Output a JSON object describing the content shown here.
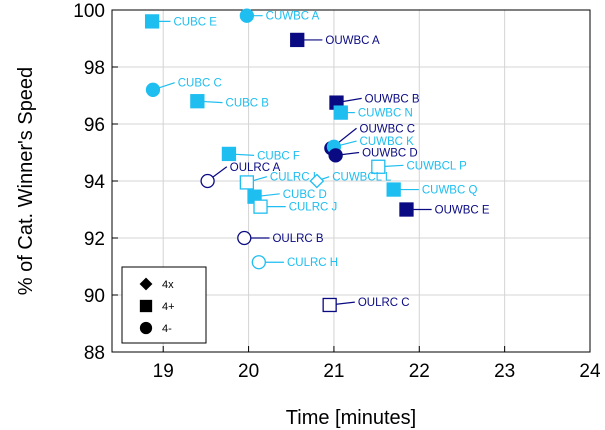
{
  "colors": {
    "light": "#1EBEF0",
    "dark": "#0A0A82",
    "grid": "#d4d4d4",
    "axis": "#000000"
  },
  "chart_data": {
    "type": "scatter",
    "xlabel": "Time [minutes]",
    "ylabel": "% of Cat. Winner's Speed",
    "xlim": [
      18.4,
      24
    ],
    "ylim": [
      88,
      100
    ],
    "xticks": [
      19,
      20,
      21,
      22,
      23,
      24
    ],
    "yticks": [
      88,
      90,
      92,
      94,
      96,
      98,
      100
    ],
    "grid": true,
    "legend": {
      "placement": "bottom-left",
      "entries": [
        {
          "marker": "diamond",
          "label": "4x"
        },
        {
          "marker": "square",
          "label": "4+"
        },
        {
          "marker": "circle",
          "label": "4-"
        }
      ]
    },
    "points": [
      {
        "label": "CUWBC A",
        "x": 19.98,
        "y": 99.8,
        "marker": "circle",
        "filled": true,
        "color": "light",
        "lx": 20.2,
        "ly": 99.8
      },
      {
        "label": "CUBC E",
        "x": 18.87,
        "y": 99.6,
        "marker": "square",
        "filled": true,
        "color": "light",
        "lx": 19.12,
        "ly": 99.6
      },
      {
        "label": "OUWBC A",
        "x": 20.57,
        "y": 98.95,
        "marker": "square",
        "filled": true,
        "color": "dark",
        "lx": 20.9,
        "ly": 98.95
      },
      {
        "label": "CUBC C",
        "x": 18.88,
        "y": 97.2,
        "marker": "circle",
        "filled": true,
        "color": "light",
        "lx": 19.17,
        "ly": 97.45
      },
      {
        "label": "CUBC B",
        "x": 19.4,
        "y": 96.8,
        "marker": "square",
        "filled": true,
        "color": "light",
        "lx": 19.73,
        "ly": 96.75
      },
      {
        "label": "OUWBC B",
        "x": 21.03,
        "y": 96.75,
        "marker": "square",
        "filled": true,
        "color": "dark",
        "lx": 21.36,
        "ly": 96.9
      },
      {
        "label": "CUWBC N",
        "x": 21.08,
        "y": 96.4,
        "marker": "square",
        "filled": true,
        "color": "light",
        "lx": 21.28,
        "ly": 96.4
      },
      {
        "label": "OUWBC C",
        "x": 20.97,
        "y": 95.15,
        "marker": "circle",
        "filled": true,
        "color": "dark",
        "lx": 21.3,
        "ly": 95.85
      },
      {
        "label": "CUWBC K",
        "x": 21.0,
        "y": 95.2,
        "marker": "circle",
        "filled": true,
        "color": "light",
        "lx": 21.3,
        "ly": 95.4
      },
      {
        "label": "OUWBC D",
        "x": 21.02,
        "y": 94.9,
        "marker": "circle",
        "filled": true,
        "color": "dark",
        "lx": 21.33,
        "ly": 95.0
      },
      {
        "label": "CUBC F",
        "x": 19.77,
        "y": 94.95,
        "marker": "square",
        "filled": true,
        "color": "light",
        "lx": 20.1,
        "ly": 94.9
      },
      {
        "label": "CUWBCL P",
        "x": 21.52,
        "y": 94.5,
        "marker": "square",
        "filled": false,
        "color": "light",
        "lx": 21.85,
        "ly": 94.55
      },
      {
        "label": "OULRC A",
        "x": 19.52,
        "y": 94.0,
        "marker": "circle",
        "filled": false,
        "color": "dark",
        "lx": 19.78,
        "ly": 94.5
      },
      {
        "label": "CULRC I",
        "x": 19.98,
        "y": 93.95,
        "marker": "square",
        "filled": false,
        "color": "light",
        "lx": 20.25,
        "ly": 94.15
      },
      {
        "label": "CUWBCL L",
        "x": 20.8,
        "y": 94.0,
        "marker": "diamond",
        "filled": false,
        "color": "light",
        "lx": 20.98,
        "ly": 94.15
      },
      {
        "label": "CUWBC Q",
        "x": 21.7,
        "y": 93.7,
        "marker": "square",
        "filled": true,
        "color": "light",
        "lx": 22.03,
        "ly": 93.7
      },
      {
        "label": "CUBC D",
        "x": 20.07,
        "y": 93.45,
        "marker": "square",
        "filled": true,
        "color": "light",
        "lx": 20.4,
        "ly": 93.55
      },
      {
        "label": "CULRC J",
        "x": 20.14,
        "y": 93.1,
        "marker": "square",
        "filled": false,
        "color": "light",
        "lx": 20.47,
        "ly": 93.1
      },
      {
        "label": "OUWBC E",
        "x": 21.85,
        "y": 93.0,
        "marker": "square",
        "filled": true,
        "color": "dark",
        "lx": 22.18,
        "ly": 93.0
      },
      {
        "label": "OULRC B",
        "x": 19.95,
        "y": 92.0,
        "marker": "circle",
        "filled": false,
        "color": "dark",
        "lx": 20.28,
        "ly": 92.0
      },
      {
        "label": "CULRC H",
        "x": 20.12,
        "y": 91.15,
        "marker": "circle",
        "filled": false,
        "color": "light",
        "lx": 20.45,
        "ly": 91.15
      },
      {
        "label": "OULRC C",
        "x": 20.95,
        "y": 89.65,
        "marker": "square",
        "filled": false,
        "color": "dark",
        "lx": 21.28,
        "ly": 89.75
      }
    ]
  }
}
